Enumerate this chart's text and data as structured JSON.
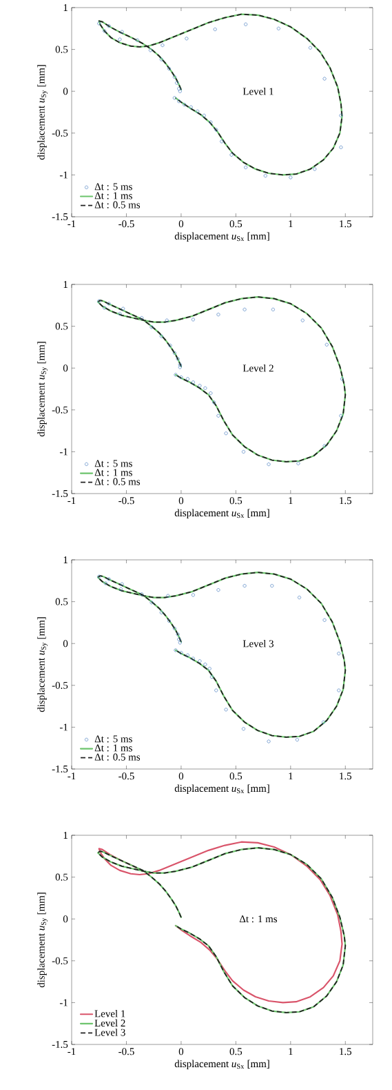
{
  "chart_data": [
    {
      "type": "line",
      "xlabel": "displacement *u*$_{Sx}$ [mm]",
      "ylabel": "displacement *u*$_{Sy}$ [mm]",
      "annotations": [
        "Level 1"
      ],
      "xlim": [
        -1,
        1.75
      ],
      "ylim": [
        -1.5,
        1
      ],
      "xticks": [
        -1,
        -0.5,
        0,
        0.5,
        1,
        1.5
      ],
      "yticks": [
        -1.5,
        -1,
        -0.5,
        0,
        0.5,
        1
      ],
      "grid": false,
      "legend": "bottom left",
      "series": [
        {
          "name": "Δt : 5 ms",
          "type": "scatter",
          "marker": "circle",
          "color": "#4a7ec0",
          "x": [
            -0.75,
            -0.7,
            -0.66,
            -0.56,
            -0.54,
            -0.4,
            -0.28,
            -0.17,
            -0.18,
            -0.11,
            -0.06,
            -0.04,
            -0.02,
            -0.01,
            -0.06,
            -0.02,
            0.03,
            0.09,
            0.15,
            0.21,
            0.27,
            0.32,
            0.37,
            0.46,
            0.59,
            0.77,
            1.0,
            1.22,
            1.46,
            1.46,
            1.31,
            1.18,
            0.89,
            0.59,
            0.31,
            0.05
          ],
          "values": [
            0.81,
            0.72,
            0.78,
            0.62,
            0.71,
            0.61,
            0.49,
            0.55,
            0.38,
            0.27,
            0.17,
            0.1,
            0.03,
            0.0,
            -0.08,
            -0.12,
            -0.16,
            -0.19,
            -0.24,
            -0.29,
            -0.37,
            -0.46,
            -0.6,
            -0.76,
            -0.91,
            -1.01,
            -1.03,
            -0.93,
            -0.67,
            -0.29,
            0.15,
            0.52,
            0.75,
            0.8,
            0.74,
            0.63
          ]
        },
        {
          "name": "Δt : 1 ms",
          "type": "line",
          "line_style": "solid",
          "color": "#6cc46c",
          "x": [
            0,
            -0.02,
            -0.05,
            -0.09,
            -0.14,
            -0.2,
            -0.27,
            -0.35,
            -0.45,
            -0.55,
            -0.65,
            -0.72,
            -0.75,
            -0.74,
            -0.7,
            -0.64,
            -0.56,
            -0.46,
            -0.38,
            -0.3,
            -0.2,
            -0.05,
            0.1,
            0.25,
            0.4,
            0.55,
            0.7,
            0.85,
            1.0,
            1.15,
            1.27,
            1.36,
            1.43,
            1.46,
            1.47,
            1.45,
            1.39,
            1.3,
            1.18,
            1.05,
            0.93,
            0.8,
            0.68,
            0.57,
            0.47,
            0.4,
            0.33,
            0.26,
            0.18,
            0.08,
            0.0,
            -0.05
          ],
          "values": [
            0.02,
            0.08,
            0.16,
            0.24,
            0.33,
            0.42,
            0.5,
            0.57,
            0.64,
            0.7,
            0.77,
            0.83,
            0.84,
            0.8,
            0.72,
            0.64,
            0.58,
            0.54,
            0.53,
            0.54,
            0.58,
            0.66,
            0.74,
            0.82,
            0.88,
            0.92,
            0.91,
            0.86,
            0.77,
            0.63,
            0.47,
            0.28,
            0.05,
            -0.15,
            -0.3,
            -0.5,
            -0.68,
            -0.82,
            -0.93,
            -0.99,
            -1.0,
            -0.98,
            -0.93,
            -0.85,
            -0.74,
            -0.62,
            -0.48,
            -0.37,
            -0.28,
            -0.2,
            -0.13,
            -0.08
          ]
        },
        {
          "name": "Δt : 0.5 ms",
          "type": "line",
          "line_style": "dashed",
          "color": "#222222",
          "x": [
            0,
            -0.02,
            -0.05,
            -0.09,
            -0.14,
            -0.2,
            -0.27,
            -0.35,
            -0.45,
            -0.55,
            -0.65,
            -0.72,
            -0.75,
            -0.74,
            -0.7,
            -0.64,
            -0.56,
            -0.46,
            -0.38,
            -0.3,
            -0.2,
            -0.05,
            0.1,
            0.25,
            0.4,
            0.55,
            0.7,
            0.85,
            1.0,
            1.15,
            1.27,
            1.36,
            1.43,
            1.46,
            1.47,
            1.45,
            1.39,
            1.3,
            1.18,
            1.05,
            0.93,
            0.8,
            0.68,
            0.57,
            0.47,
            0.4,
            0.33,
            0.26,
            0.18,
            0.08,
            0.0,
            -0.05
          ],
          "values": [
            0.02,
            0.08,
            0.16,
            0.24,
            0.33,
            0.42,
            0.5,
            0.57,
            0.64,
            0.7,
            0.77,
            0.83,
            0.84,
            0.8,
            0.72,
            0.64,
            0.58,
            0.54,
            0.53,
            0.54,
            0.58,
            0.66,
            0.74,
            0.82,
            0.88,
            0.92,
            0.91,
            0.86,
            0.77,
            0.63,
            0.47,
            0.28,
            0.05,
            -0.15,
            -0.3,
            -0.5,
            -0.68,
            -0.82,
            -0.93,
            -0.99,
            -1.0,
            -0.98,
            -0.93,
            -0.85,
            -0.74,
            -0.62,
            -0.48,
            -0.37,
            -0.28,
            -0.2,
            -0.13,
            -0.08
          ]
        }
      ]
    },
    {
      "type": "line",
      "xlabel": "displacement *u*$_{Sx}$ [mm]",
      "ylabel": "displacement *u*$_{Sy}$ [mm]",
      "annotations": [
        "Level 2"
      ],
      "xlim": [
        -1,
        1.75
      ],
      "ylim": [
        -1.5,
        1
      ],
      "xticks": [
        -1,
        -0.5,
        0,
        0.5,
        1,
        1.5
      ],
      "yticks": [
        -1.5,
        -1,
        -0.5,
        0,
        0.5,
        1
      ],
      "grid": false,
      "legend": "bottom left",
      "series": [
        {
          "name": "Δt : 5 ms",
          "type": "scatter",
          "marker": "circle",
          "color": "#4a7ec0",
          "x": [
            -0.75,
            -0.7,
            -0.66,
            -0.56,
            -0.53,
            -0.36,
            -0.27,
            -0.13,
            -0.18,
            -0.1,
            -0.06,
            -0.03,
            -0.01,
            -0.01,
            -0.05,
            0.0,
            0.06,
            0.11,
            0.17,
            0.22,
            0.27,
            0.3,
            0.34,
            0.41,
            0.57,
            0.8,
            1.07,
            1.31,
            1.46,
            1.47,
            1.33,
            1.11,
            0.84,
            0.58,
            0.34,
            0.11
          ],
          "values": [
            0.8,
            0.72,
            0.77,
            0.65,
            0.71,
            0.6,
            0.49,
            0.57,
            0.38,
            0.27,
            0.18,
            0.11,
            0.04,
            0.01,
            -0.08,
            -0.11,
            -0.13,
            -0.17,
            -0.21,
            -0.24,
            -0.3,
            -0.41,
            -0.57,
            -0.78,
            -1.0,
            -1.15,
            -1.14,
            -0.93,
            -0.57,
            -0.13,
            0.28,
            0.57,
            0.7,
            0.7,
            0.64,
            0.58
          ]
        },
        {
          "name": "Δt : 1 ms",
          "type": "line",
          "line_style": "solid",
          "color": "#6cc46c",
          "x": [
            0,
            -0.02,
            -0.05,
            -0.09,
            -0.14,
            -0.2,
            -0.27,
            -0.35,
            -0.45,
            -0.55,
            -0.65,
            -0.71,
            -0.74,
            -0.76,
            -0.72,
            -0.64,
            -0.54,
            -0.44,
            -0.34,
            -0.25,
            -0.15,
            -0.05,
            0.1,
            0.25,
            0.4,
            0.55,
            0.7,
            0.85,
            1.0,
            1.15,
            1.28,
            1.38,
            1.45,
            1.49,
            1.5,
            1.48,
            1.42,
            1.33,
            1.21,
            1.08,
            0.96,
            0.83,
            0.7,
            0.58,
            0.47,
            0.39,
            0.32,
            0.25,
            0.17,
            0.08,
            0.0,
            -0.05
          ],
          "values": [
            0.02,
            0.08,
            0.16,
            0.24,
            0.33,
            0.42,
            0.5,
            0.58,
            0.64,
            0.7,
            0.76,
            0.8,
            0.81,
            0.79,
            0.74,
            0.68,
            0.63,
            0.6,
            0.57,
            0.55,
            0.55,
            0.57,
            0.62,
            0.7,
            0.78,
            0.83,
            0.85,
            0.83,
            0.77,
            0.65,
            0.48,
            0.26,
            0.02,
            -0.2,
            -0.32,
            -0.55,
            -0.75,
            -0.92,
            -1.05,
            -1.11,
            -1.12,
            -1.1,
            -1.04,
            -0.94,
            -0.8,
            -0.63,
            -0.45,
            -0.32,
            -0.24,
            -0.17,
            -0.12,
            -0.08
          ]
        },
        {
          "name": "Δt : 0.5 ms",
          "type": "line",
          "line_style": "dashed",
          "color": "#222222",
          "x": [
            0,
            -0.02,
            -0.05,
            -0.09,
            -0.14,
            -0.2,
            -0.27,
            -0.35,
            -0.45,
            -0.55,
            -0.65,
            -0.71,
            -0.74,
            -0.76,
            -0.72,
            -0.64,
            -0.54,
            -0.44,
            -0.34,
            -0.25,
            -0.15,
            -0.05,
            0.1,
            0.25,
            0.4,
            0.55,
            0.7,
            0.85,
            1.0,
            1.15,
            1.28,
            1.38,
            1.45,
            1.49,
            1.5,
            1.48,
            1.42,
            1.33,
            1.21,
            1.08,
            0.96,
            0.83,
            0.7,
            0.58,
            0.47,
            0.39,
            0.32,
            0.25,
            0.17,
            0.08,
            0.0,
            -0.05
          ],
          "values": [
            0.02,
            0.08,
            0.16,
            0.24,
            0.33,
            0.42,
            0.5,
            0.58,
            0.64,
            0.7,
            0.76,
            0.8,
            0.81,
            0.79,
            0.74,
            0.68,
            0.63,
            0.6,
            0.57,
            0.55,
            0.55,
            0.57,
            0.62,
            0.7,
            0.78,
            0.83,
            0.85,
            0.83,
            0.77,
            0.65,
            0.48,
            0.26,
            0.02,
            -0.2,
            -0.32,
            -0.55,
            -0.75,
            -0.92,
            -1.05,
            -1.11,
            -1.12,
            -1.1,
            -1.04,
            -0.94,
            -0.8,
            -0.63,
            -0.45,
            -0.32,
            -0.24,
            -0.17,
            -0.12,
            -0.08
          ]
        }
      ]
    },
    {
      "type": "line",
      "xlabel": "displacement *u*$_{Sx}$ [mm]",
      "ylabel": "displacement *u*$_{Sy}$ [mm]",
      "annotations": [
        "Level 3"
      ],
      "xlim": [
        -1,
        1.75
      ],
      "ylim": [
        -1.5,
        1
      ],
      "xticks": [
        -1,
        -0.5,
        0,
        0.5,
        1,
        1.5
      ],
      "yticks": [
        -1.5,
        -1,
        -0.5,
        0,
        0.5,
        1
      ],
      "grid": false,
      "legend": "bottom left",
      "series": [
        {
          "name": "Δt : 5 ms",
          "type": "scatter",
          "marker": "circle",
          "color": "#4a7ec0",
          "x": [
            -0.75,
            -0.69,
            -0.66,
            -0.55,
            -0.54,
            -0.36,
            -0.27,
            -0.12,
            -0.18,
            -0.11,
            -0.06,
            -0.03,
            -0.02,
            -0.01,
            -0.05,
            0.0,
            0.06,
            0.11,
            0.17,
            0.22,
            0.26,
            0.28,
            0.32,
            0.41,
            0.57,
            0.8,
            1.06,
            1.3,
            1.44,
            1.44,
            1.31,
            1.08,
            0.83,
            0.58,
            0.34,
            0.11
          ],
          "values": [
            0.8,
            0.72,
            0.77,
            0.65,
            0.71,
            0.59,
            0.49,
            0.57,
            0.37,
            0.27,
            0.18,
            0.11,
            0.05,
            0.01,
            -0.08,
            -0.11,
            -0.14,
            -0.18,
            -0.21,
            -0.25,
            -0.3,
            -0.4,
            -0.56,
            -0.79,
            -1.02,
            -1.17,
            -1.15,
            -0.94,
            -0.56,
            -0.12,
            0.28,
            0.55,
            0.69,
            0.69,
            0.64,
            0.58
          ]
        },
        {
          "name": "Δt : 1 ms",
          "type": "line",
          "line_style": "solid",
          "color": "#6cc46c",
          "x": [
            0,
            -0.02,
            -0.05,
            -0.09,
            -0.14,
            -0.2,
            -0.27,
            -0.35,
            -0.45,
            -0.55,
            -0.65,
            -0.71,
            -0.74,
            -0.76,
            -0.72,
            -0.64,
            -0.54,
            -0.44,
            -0.34,
            -0.25,
            -0.15,
            -0.05,
            0.1,
            0.25,
            0.4,
            0.55,
            0.7,
            0.85,
            1.0,
            1.15,
            1.28,
            1.38,
            1.45,
            1.49,
            1.5,
            1.48,
            1.42,
            1.33,
            1.21,
            1.08,
            0.96,
            0.83,
            0.7,
            0.58,
            0.47,
            0.39,
            0.32,
            0.25,
            0.17,
            0.08,
            0.0,
            -0.05
          ],
          "values": [
            0.02,
            0.08,
            0.16,
            0.24,
            0.33,
            0.42,
            0.5,
            0.58,
            0.64,
            0.7,
            0.76,
            0.8,
            0.81,
            0.79,
            0.74,
            0.68,
            0.63,
            0.6,
            0.57,
            0.55,
            0.55,
            0.57,
            0.62,
            0.7,
            0.78,
            0.83,
            0.85,
            0.83,
            0.77,
            0.65,
            0.48,
            0.26,
            0.02,
            -0.2,
            -0.32,
            -0.55,
            -0.75,
            -0.92,
            -1.05,
            -1.11,
            -1.12,
            -1.1,
            -1.04,
            -0.94,
            -0.8,
            -0.63,
            -0.45,
            -0.32,
            -0.24,
            -0.17,
            -0.12,
            -0.08
          ]
        },
        {
          "name": "Δt : 0.5 ms",
          "type": "line",
          "line_style": "dashed",
          "color": "#222222",
          "x": [
            0,
            -0.02,
            -0.05,
            -0.09,
            -0.14,
            -0.2,
            -0.27,
            -0.35,
            -0.45,
            -0.55,
            -0.65,
            -0.71,
            -0.74,
            -0.76,
            -0.72,
            -0.64,
            -0.54,
            -0.44,
            -0.34,
            -0.25,
            -0.15,
            -0.05,
            0.1,
            0.25,
            0.4,
            0.55,
            0.7,
            0.85,
            1.0,
            1.15,
            1.28,
            1.38,
            1.45,
            1.49,
            1.5,
            1.48,
            1.42,
            1.33,
            1.21,
            1.08,
            0.96,
            0.83,
            0.7,
            0.58,
            0.47,
            0.39,
            0.32,
            0.25,
            0.17,
            0.08,
            0.0,
            -0.05
          ],
          "values": [
            0.02,
            0.08,
            0.16,
            0.24,
            0.33,
            0.42,
            0.5,
            0.58,
            0.64,
            0.7,
            0.76,
            0.8,
            0.81,
            0.79,
            0.74,
            0.68,
            0.63,
            0.6,
            0.57,
            0.55,
            0.55,
            0.57,
            0.62,
            0.7,
            0.78,
            0.83,
            0.85,
            0.83,
            0.77,
            0.65,
            0.48,
            0.26,
            0.02,
            -0.2,
            -0.32,
            -0.55,
            -0.75,
            -0.92,
            -1.05,
            -1.11,
            -1.12,
            -1.1,
            -1.04,
            -0.94,
            -0.8,
            -0.63,
            -0.45,
            -0.32,
            -0.24,
            -0.17,
            -0.12,
            -0.08
          ]
        }
      ]
    },
    {
      "type": "line",
      "xlabel": "displacement *u*$_{Sx}$ [mm]",
      "ylabel": "displacement *u*$_{Sy}$ [mm]",
      "annotations": [
        "Δt : 1 ms"
      ],
      "xlim": [
        -1,
        1.75
      ],
      "ylim": [
        -1.5,
        1
      ],
      "xticks": [
        -1,
        -0.5,
        0,
        0.5,
        1,
        1.5
      ],
      "yticks": [
        -1.5,
        -1,
        -0.5,
        0,
        0.5,
        1
      ],
      "grid": false,
      "legend": "bottom left",
      "series": [
        {
          "name": "Level 1",
          "type": "line",
          "line_style": "solid",
          "color": "#d9546a",
          "x": [
            -0.35,
            -0.45,
            -0.55,
            -0.65,
            -0.72,
            -0.75,
            -0.74,
            -0.7,
            -0.64,
            -0.56,
            -0.46,
            -0.38,
            -0.3,
            -0.2,
            -0.05,
            0.1,
            0.25,
            0.4,
            0.55,
            0.7,
            0.85,
            1.0,
            1.15,
            1.27,
            1.36,
            1.43,
            1.46,
            1.47,
            1.45,
            1.39,
            1.3,
            1.18,
            1.05,
            0.93,
            0.8,
            0.68,
            0.57,
            0.47,
            0.4,
            0.33,
            0.26,
            0.18,
            0.08,
            0.0,
            -0.05
          ],
          "values": [
            0.57,
            0.64,
            0.7,
            0.77,
            0.83,
            0.84,
            0.8,
            0.72,
            0.64,
            0.58,
            0.54,
            0.53,
            0.54,
            0.58,
            0.66,
            0.74,
            0.82,
            0.88,
            0.92,
            0.91,
            0.86,
            0.77,
            0.63,
            0.47,
            0.28,
            0.05,
            -0.15,
            -0.3,
            -0.5,
            -0.68,
            -0.82,
            -0.93,
            -0.99,
            -1.0,
            -0.98,
            -0.93,
            -0.85,
            -0.74,
            -0.62,
            -0.48,
            -0.37,
            -0.28,
            -0.2,
            -0.13,
            -0.08
          ]
        },
        {
          "name": "Level 2",
          "type": "line",
          "line_style": "solid",
          "color": "#6cc46c",
          "x": [
            0,
            -0.02,
            -0.05,
            -0.09,
            -0.14,
            -0.2,
            -0.27,
            -0.35,
            -0.45,
            -0.55,
            -0.65,
            -0.71,
            -0.74,
            -0.76,
            -0.72,
            -0.64,
            -0.54,
            -0.44,
            -0.34,
            -0.25,
            -0.15,
            -0.05,
            0.1,
            0.25,
            0.4,
            0.55,
            0.7,
            0.85,
            1.0,
            1.15,
            1.28,
            1.38,
            1.45,
            1.49,
            1.5,
            1.48,
            1.42,
            1.33,
            1.21,
            1.08,
            0.96,
            0.83,
            0.7,
            0.58,
            0.47,
            0.39,
            0.32,
            0.25,
            0.17,
            0.08,
            0.0,
            -0.05
          ],
          "values": [
            0.02,
            0.08,
            0.16,
            0.24,
            0.33,
            0.42,
            0.5,
            0.58,
            0.64,
            0.7,
            0.76,
            0.8,
            0.81,
            0.79,
            0.74,
            0.68,
            0.63,
            0.6,
            0.57,
            0.55,
            0.55,
            0.57,
            0.62,
            0.7,
            0.78,
            0.83,
            0.85,
            0.83,
            0.77,
            0.65,
            0.48,
            0.26,
            0.02,
            -0.2,
            -0.32,
            -0.55,
            -0.75,
            -0.92,
            -1.05,
            -1.11,
            -1.12,
            -1.1,
            -1.04,
            -0.94,
            -0.8,
            -0.63,
            -0.45,
            -0.32,
            -0.24,
            -0.17,
            -0.12,
            -0.08
          ]
        },
        {
          "name": "Level 3",
          "type": "line",
          "line_style": "dashed",
          "color": "#222222",
          "x": [
            0,
            -0.02,
            -0.05,
            -0.09,
            -0.14,
            -0.2,
            -0.27,
            -0.35,
            -0.45,
            -0.55,
            -0.65,
            -0.71,
            -0.74,
            -0.76,
            -0.72,
            -0.64,
            -0.54,
            -0.44,
            -0.34,
            -0.25,
            -0.15,
            -0.05,
            0.1,
            0.25,
            0.4,
            0.55,
            0.7,
            0.85,
            1.0,
            1.15,
            1.28,
            1.38,
            1.45,
            1.49,
            1.5,
            1.48,
            1.42,
            1.33,
            1.21,
            1.08,
            0.96,
            0.83,
            0.7,
            0.58,
            0.47,
            0.39,
            0.32,
            0.25,
            0.17,
            0.08,
            0.0,
            -0.05
          ],
          "values": [
            0.02,
            0.08,
            0.16,
            0.24,
            0.33,
            0.42,
            0.5,
            0.58,
            0.64,
            0.7,
            0.76,
            0.8,
            0.81,
            0.79,
            0.74,
            0.68,
            0.63,
            0.6,
            0.57,
            0.55,
            0.55,
            0.57,
            0.62,
            0.7,
            0.78,
            0.83,
            0.85,
            0.83,
            0.77,
            0.65,
            0.48,
            0.26,
            0.02,
            -0.2,
            -0.32,
            -0.55,
            -0.75,
            -0.92,
            -1.05,
            -1.11,
            -1.12,
            -1.1,
            -1.04,
            -0.94,
            -0.8,
            -0.63,
            -0.45,
            -0.32,
            -0.24,
            -0.17,
            -0.12,
            -0.08
          ]
        }
      ]
    }
  ]
}
